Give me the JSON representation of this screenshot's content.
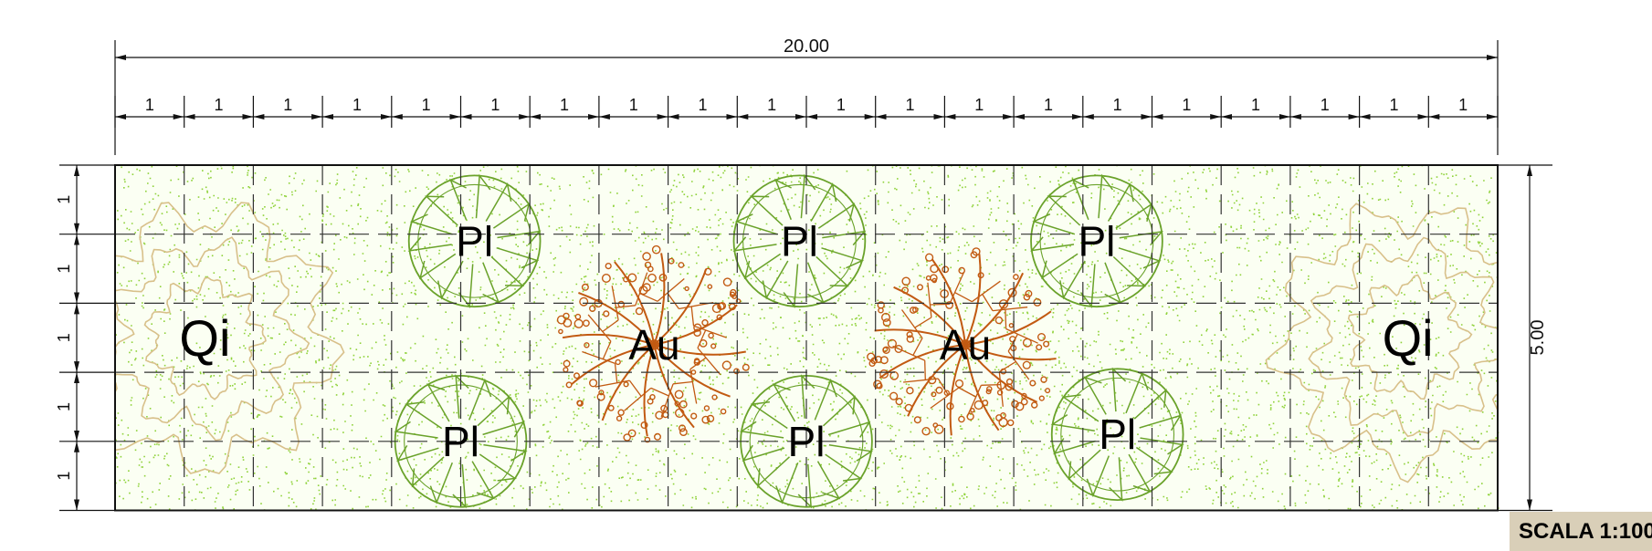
{
  "drawing": {
    "total_width_label": "20.00",
    "module_label": "1",
    "module_count": 20,
    "row_count": 5,
    "total_height_label": "5.00",
    "scale_label": "SCALA 1:100",
    "colors": {
      "hatch": "#8fd23a",
      "grid": "#333333",
      "pl_tree": "#6aa22a",
      "au_tree": "#c25a12",
      "qi_tree": "#d8c08a",
      "scale_box": "#d9cfb8"
    }
  },
  "plants": [
    {
      "label": "Qi",
      "type": "qi",
      "icon": "qi-tree-icon",
      "cx": 1.3,
      "cy": 2.5,
      "r": 2.0
    },
    {
      "label": "Pl",
      "type": "pl",
      "icon": "pl-tree-icon",
      "cx": 5.2,
      "cy": 1.1,
      "r": 0.95
    },
    {
      "label": "Pl",
      "type": "pl",
      "icon": "pl-tree-icon",
      "cx": 5.0,
      "cy": 4.0,
      "r": 0.95
    },
    {
      "label": "Au",
      "type": "au",
      "icon": "au-tree-icon",
      "cx": 7.8,
      "cy": 2.6,
      "r": 1.4
    },
    {
      "label": "Pl",
      "type": "pl",
      "icon": "pl-tree-icon",
      "cx": 9.9,
      "cy": 1.1,
      "r": 0.95
    },
    {
      "label": "Pl",
      "type": "pl",
      "icon": "pl-tree-icon",
      "cx": 10.0,
      "cy": 4.0,
      "r": 0.95
    },
    {
      "label": "Au",
      "type": "au",
      "icon": "au-tree-icon",
      "cx": 12.3,
      "cy": 2.6,
      "r": 1.4
    },
    {
      "label": "Pl",
      "type": "pl",
      "icon": "pl-tree-icon",
      "cx": 14.2,
      "cy": 1.1,
      "r": 0.95
    },
    {
      "label": "Pl",
      "type": "pl",
      "icon": "pl-tree-icon",
      "cx": 14.5,
      "cy": 3.9,
      "r": 0.95
    },
    {
      "label": "Qi",
      "type": "qi",
      "icon": "qi-tree-icon",
      "cx": 18.7,
      "cy": 2.5,
      "r": 2.0
    }
  ]
}
